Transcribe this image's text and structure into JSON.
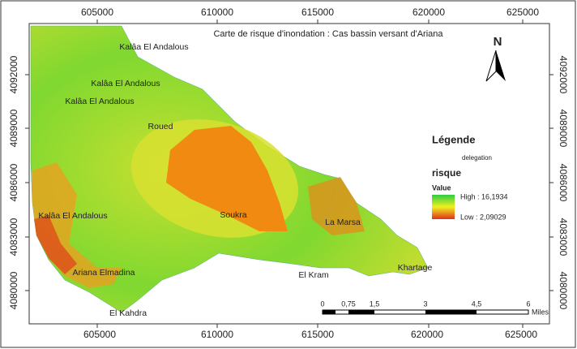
{
  "header": {
    "title": "Carte de risque d'inondation : Cas bassin versant d'Ariana"
  },
  "grid": {
    "x_labels": [
      "605000",
      "610000",
      "615000",
      "620000",
      "625000"
    ],
    "y_labels": [
      "4092000",
      "4089000",
      "4086000",
      "4083000",
      "4080000"
    ]
  },
  "places": [
    "Kalâa El Andalous",
    "Kalâa El Andalous",
    "Kalâa El Andalous",
    "Kalâa El Andalous",
    "Roued",
    "Soukra",
    "La Marsa",
    "Khartage",
    "El Kram",
    "Ariana Elmadina",
    "El Kahdra"
  ],
  "north": "N",
  "legend": {
    "title": "Légende",
    "layer": "delegation",
    "field": "risque",
    "value": "Value",
    "high": "High : 16,1934",
    "low": "Low : 2,09029"
  },
  "scale": {
    "labels": [
      "0",
      "0,75",
      "1,5",
      "3",
      "4,5",
      "6"
    ],
    "unit": "Miles"
  }
}
